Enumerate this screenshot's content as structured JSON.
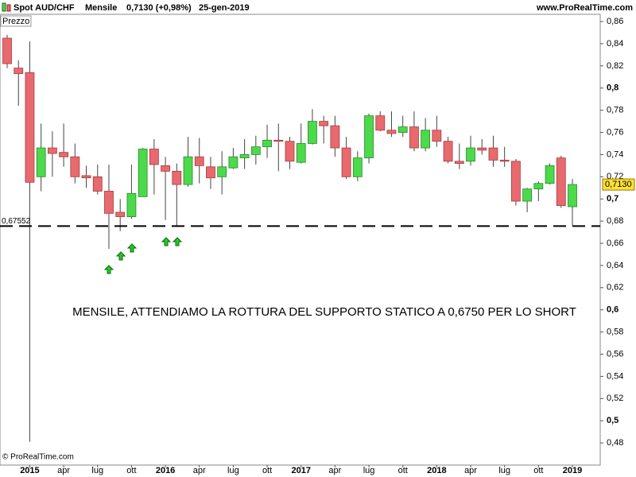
{
  "chart_data": {
    "type": "candlestick",
    "title": "Spot AUD/CHF",
    "period": "Mensile",
    "last_change": "0,7130 (+0,98%)",
    "date": "25-gen-2019",
    "source": "www.ProRealTime.com",
    "panel_label": "Prezzo",
    "copyright": "© ProRealTime.com",
    "annotation": "MENSILE, ATTENDIAMO LA ROTTURA DEL SUPPORTO STATICO A 0,6750 PER LO SHORT",
    "categories": [
      null,
      null,
      "2015",
      null,
      null,
      "apr",
      null,
      null,
      "lug",
      null,
      null,
      "ott",
      null,
      null,
      "2016",
      null,
      null,
      "apr",
      null,
      null,
      "lug",
      null,
      null,
      "ott",
      null,
      null,
      "2017",
      null,
      null,
      "apr",
      null,
      null,
      "lug",
      null,
      null,
      "ott",
      null,
      null,
      "2018",
      null,
      null,
      "apr",
      null,
      null,
      "lug",
      null,
      null,
      "ott",
      null,
      null,
      "2019"
    ],
    "open": [
      0.845,
      0.818,
      0.814,
      0.72,
      0.746,
      0.742,
      0.738,
      0.721,
      0.72,
      0.707,
      0.688,
      0.684,
      0.702,
      0.745,
      0.73,
      0.725,
      0.713,
      0.738,
      0.729,
      0.72,
      0.728,
      0.737,
      0.74,
      0.747,
      0.753,
      0.752,
      0.733,
      0.75,
      0.77,
      0.766,
      0.746,
      0.72,
      0.737,
      0.775,
      0.762,
      0.76,
      0.765,
      0.746,
      0.762,
      0.752,
      0.734,
      0.734,
      0.746,
      0.746,
      0.735,
      0.734,
      0.698,
      0.709,
      0.714,
      0.737,
      0.693
    ],
    "high": [
      0.848,
      0.825,
      0.842,
      0.768,
      0.761,
      0.768,
      0.75,
      0.73,
      0.731,
      0.731,
      0.7,
      0.731,
      0.746,
      0.754,
      0.738,
      0.732,
      0.756,
      0.755,
      0.738,
      0.743,
      0.746,
      0.754,
      0.757,
      0.767,
      0.768,
      0.756,
      0.768,
      0.781,
      0.775,
      0.775,
      0.756,
      0.743,
      0.777,
      0.779,
      0.779,
      0.775,
      0.779,
      0.773,
      0.775,
      0.756,
      0.75,
      0.757,
      0.754,
      0.757,
      0.747,
      0.736,
      0.71,
      0.716,
      0.732,
      0.739,
      0.718
    ],
    "low": [
      0.818,
      0.784,
      0.481,
      0.707,
      0.72,
      0.729,
      0.714,
      0.71,
      0.704,
      0.655,
      0.671,
      0.682,
      0.702,
      0.704,
      0.681,
      0.676,
      0.711,
      0.714,
      0.709,
      0.704,
      0.727,
      0.727,
      0.731,
      0.737,
      0.725,
      0.727,
      0.732,
      0.749,
      0.75,
      0.738,
      0.718,
      0.716,
      0.732,
      0.761,
      0.756,
      0.756,
      0.743,
      0.743,
      0.747,
      0.732,
      0.727,
      0.73,
      0.74,
      0.729,
      0.729,
      0.694,
      0.688,
      0.698,
      0.713,
      0.692,
      0.676
    ],
    "close": [
      0.822,
      0.813,
      0.715,
      0.746,
      0.741,
      0.738,
      0.72,
      0.719,
      0.707,
      0.687,
      0.684,
      0.705,
      0.745,
      0.731,
      0.725,
      0.713,
      0.738,
      0.73,
      0.719,
      0.729,
      0.738,
      0.74,
      0.747,
      0.753,
      0.752,
      0.734,
      0.75,
      0.77,
      0.766,
      0.746,
      0.72,
      0.737,
      0.775,
      0.762,
      0.759,
      0.765,
      0.746,
      0.762,
      0.752,
      0.734,
      0.732,
      0.746,
      0.744,
      0.735,
      0.734,
      0.698,
      0.709,
      0.714,
      0.73,
      0.694,
      0.713
    ],
    "up_color": "#4cd94c",
    "down_color": "#e86a6e",
    "last_price_label": "0,7130",
    "support": {
      "value": 0.67552,
      "label": "0,67552"
    },
    "ylim": [
      0.46,
      0.8665
    ],
    "yticks": [
      {
        "value": 0.48,
        "label": "0,48"
      },
      {
        "value": 0.5,
        "label": "0,5"
      },
      {
        "value": 0.52,
        "label": "0,52"
      },
      {
        "value": 0.54,
        "label": "0,54"
      },
      {
        "value": 0.56,
        "label": "0,56"
      },
      {
        "value": 0.58,
        "label": "0,58"
      },
      {
        "value": 0.6,
        "label": "0,6"
      },
      {
        "value": 0.62,
        "label": "0,62"
      },
      {
        "value": 0.64,
        "label": "0,64"
      },
      {
        "value": 0.66,
        "label": "0,66"
      },
      {
        "value": 0.68,
        "label": "0,68"
      },
      {
        "value": 0.7,
        "label": "0,7"
      },
      {
        "value": 0.72,
        "label": "0,72"
      },
      {
        "value": 0.74,
        "label": "0,74"
      },
      {
        "value": 0.76,
        "label": "0,76"
      },
      {
        "value": 0.78,
        "label": "0,78"
      },
      {
        "value": 0.8,
        "label": "0,8"
      },
      {
        "value": 0.82,
        "label": "0,82"
      },
      {
        "value": 0.84,
        "label": "0,84"
      },
      {
        "value": 0.86,
        "label": "0,86"
      }
    ]
  }
}
